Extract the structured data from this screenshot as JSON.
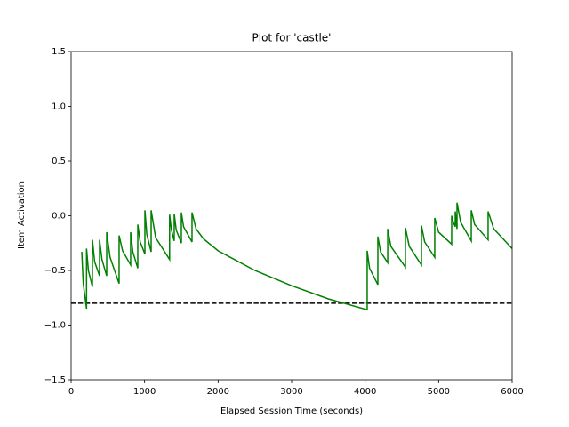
{
  "chart_data": {
    "type": "line",
    "title": "Plot for 'castle'",
    "xlabel": "Elapsed Session Time (seconds)",
    "ylabel": "Item Activation",
    "xlim": [
      0,
      6000
    ],
    "xticks": [
      0,
      1000,
      2000,
      3000,
      4000,
      5000,
      6000
    ],
    "ylim": [
      -1.5,
      1.5
    ],
    "yticks": [
      {
        "value": -1.5,
        "label": "−1.5"
      },
      {
        "value": -1.0,
        "label": "−1.0"
      },
      {
        "value": -0.5,
        "label": "−0.5"
      },
      {
        "value": 0,
        "label": "0.0"
      },
      0.5,
      {
        "value": 1.0,
        "label": "1.0"
      },
      1.5
    ],
    "hlines": [
      {
        "value": -0.8,
        "color": "#000000",
        "style": "dashed"
      }
    ],
    "x": [
      145,
      165,
      210,
      210,
      235,
      290,
      290,
      320,
      387,
      387,
      420,
      484,
      484,
      530,
      653,
      653,
      700,
      810,
      810,
      840,
      907,
      907,
      940,
      1004,
      1004,
      1030,
      1089,
      1089,
      1150,
      1340,
      1340,
      1365,
      1403,
      1403,
      1430,
      1500,
      1500,
      1530,
      1645,
      1645,
      1700,
      1800,
      2000,
      2500,
      3000,
      3500,
      4028,
      4028,
      4060,
      4173,
      4173,
      4210,
      4307,
      4307,
      4350,
      4548,
      4548,
      4600,
      4766,
      4766,
      4810,
      4947,
      4947,
      5000,
      5177,
      5177,
      5200,
      5226,
      5226,
      5250,
      5250,
      5300,
      5444,
      5444,
      5490,
      5673,
      5673,
      5750,
      6000
    ],
    "series": [
      {
        "name": "castle",
        "color": "#008000",
        "values": [
          -0.33,
          -0.62,
          -0.85,
          -0.3,
          -0.5,
          -0.65,
          -0.22,
          -0.42,
          -0.55,
          -0.22,
          -0.4,
          -0.55,
          -0.15,
          -0.38,
          -0.62,
          -0.18,
          -0.32,
          -0.45,
          -0.15,
          -0.33,
          -0.48,
          -0.08,
          -0.24,
          -0.35,
          0.05,
          -0.17,
          -0.33,
          0.05,
          -0.2,
          -0.4,
          0.01,
          -0.13,
          -0.23,
          0.02,
          -0.13,
          -0.25,
          0.03,
          -0.1,
          -0.24,
          0.03,
          -0.12,
          -0.21,
          -0.32,
          -0.5,
          -0.64,
          -0.76,
          -0.86,
          -0.32,
          -0.48,
          -0.63,
          -0.19,
          -0.33,
          -0.43,
          -0.12,
          -0.28,
          -0.47,
          -0.11,
          -0.28,
          -0.45,
          -0.09,
          -0.24,
          -0.38,
          -0.02,
          -0.15,
          -0.26,
          0.0,
          -0.06,
          -0.1,
          0.04,
          -0.12,
          0.12,
          -0.06,
          -0.23,
          0.05,
          -0.08,
          -0.22,
          0.04,
          -0.12,
          -0.3
        ]
      }
    ]
  }
}
